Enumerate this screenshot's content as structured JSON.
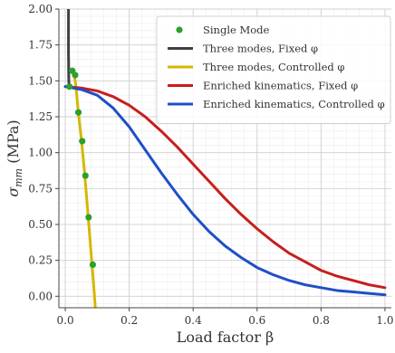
{
  "chart_data": {
    "type": "line",
    "xlabel": "Load factor β",
    "ylabel": "σmm (MPa)",
    "ylabel_main": "σ",
    "ylabel_sub": "mm",
    "ylabel_unit": " (MPa)",
    "xlim": [
      -0.02,
      1.02
    ],
    "ylim": [
      -0.08,
      2.0
    ],
    "xticks": [
      0.0,
      0.2,
      0.4,
      0.6,
      0.8,
      1.0
    ],
    "xtick_labels": [
      "0.0",
      "0.2",
      "0.4",
      "0.6",
      "0.8",
      "1.0"
    ],
    "yticks": [
      0.0,
      0.25,
      0.5,
      0.75,
      1.0,
      1.25,
      1.5,
      1.75,
      2.0
    ],
    "ytick_labels": [
      "0.00",
      "0.25",
      "0.50",
      "0.75",
      "1.00",
      "1.25",
      "1.50",
      "1.75",
      "2.00"
    ],
    "grid": true,
    "legend_position": "top-right",
    "series": [
      {
        "name": "Single Mode",
        "kind": "scatter",
        "color": "#2ca02c",
        "x": [
          0.013,
          0.022,
          0.031,
          0.041,
          0.053,
          0.063,
          0.073,
          0.086
        ],
        "y": [
          1.46,
          1.57,
          1.54,
          1.28,
          1.08,
          0.84,
          0.55,
          0.22
        ]
      },
      {
        "name": "Three modes, Fixed φ",
        "kind": "line",
        "color": "#404040",
        "x": [
          0.01,
          0.01,
          0.011,
          0.012,
          0.014,
          0.017
        ],
        "y": [
          2.0,
          1.7,
          1.5,
          1.47,
          1.46,
          1.46
        ]
      },
      {
        "name": "Three modes, Controlled φ",
        "kind": "line",
        "color": "#d4b800",
        "x": [
          0.022,
          0.027,
          0.033,
          0.04,
          0.05,
          0.06,
          0.07,
          0.08,
          0.088,
          0.094
        ],
        "y": [
          1.57,
          1.56,
          1.47,
          1.3,
          1.1,
          0.87,
          0.6,
          0.32,
          0.1,
          -0.08
        ]
      },
      {
        "name": "Enriched kinematics, Fixed φ",
        "kind": "line",
        "color": "#c81e1e",
        "x": [
          0.0,
          0.05,
          0.1,
          0.15,
          0.2,
          0.25,
          0.3,
          0.35,
          0.4,
          0.45,
          0.5,
          0.55,
          0.6,
          0.65,
          0.7,
          0.75,
          0.8,
          0.85,
          0.9,
          0.95,
          1.0
        ],
        "y": [
          1.46,
          1.45,
          1.43,
          1.39,
          1.33,
          1.25,
          1.15,
          1.04,
          0.92,
          0.8,
          0.68,
          0.57,
          0.47,
          0.38,
          0.3,
          0.24,
          0.18,
          0.14,
          0.11,
          0.08,
          0.06
        ]
      },
      {
        "name": "Enriched kinematics, Controlled φ",
        "kind": "line",
        "color": "#1f4fc8",
        "x": [
          0.0,
          0.05,
          0.1,
          0.15,
          0.2,
          0.25,
          0.3,
          0.35,
          0.4,
          0.45,
          0.5,
          0.55,
          0.6,
          0.65,
          0.7,
          0.75,
          0.8,
          0.85,
          0.9,
          0.95,
          1.0
        ],
        "y": [
          1.46,
          1.44,
          1.4,
          1.31,
          1.18,
          1.02,
          0.86,
          0.71,
          0.57,
          0.45,
          0.35,
          0.27,
          0.2,
          0.15,
          0.11,
          0.08,
          0.06,
          0.04,
          0.03,
          0.02,
          0.01
        ]
      }
    ]
  }
}
